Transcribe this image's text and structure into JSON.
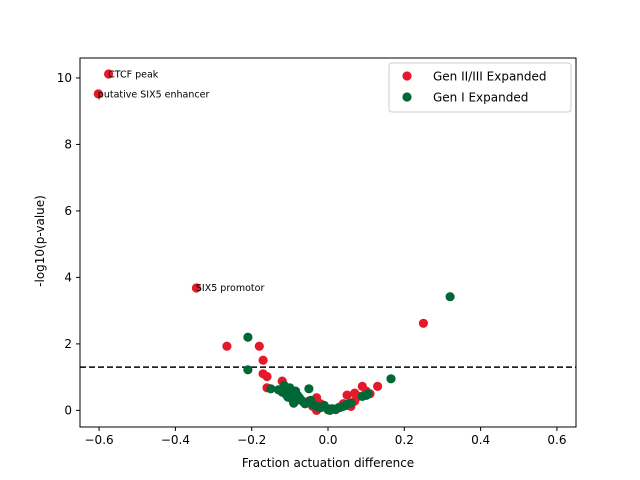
{
  "chart_data": {
    "type": "scatter",
    "xlabel": "Fraction actuation difference",
    "ylabel": "-log10(p-value)",
    "xlim": [
      -0.65,
      0.65
    ],
    "ylim": [
      -0.5,
      10.6
    ],
    "xticks": [
      -0.6,
      -0.4,
      -0.2,
      0.0,
      0.2,
      0.4,
      0.6
    ],
    "xtick_labels": [
      "−0.6",
      "−0.4",
      "−0.2",
      "0.0",
      "0.2",
      "0.4",
      "0.6"
    ],
    "yticks": [
      0,
      2,
      4,
      6,
      8,
      10
    ],
    "ytick_labels": [
      "0",
      "2",
      "4",
      "6",
      "8",
      "10"
    ],
    "grid": false,
    "legend_position": "top-right",
    "threshold": {
      "y": 1.3,
      "style": "dashed",
      "color": "#000000"
    },
    "annotations": [
      {
        "text": "CTCF peak",
        "x": -0.575,
        "y": 10.1
      },
      {
        "text": "putative SIX5 enhancer",
        "x": -0.602,
        "y": 9.5
      },
      {
        "text": "SIX5 promotor",
        "x": -0.345,
        "y": 3.68
      }
    ],
    "series": [
      {
        "name": "Gen II/III Expanded",
        "color": "#e41a2b",
        "points": [
          [
            -0.575,
            10.12
          ],
          [
            -0.602,
            9.52
          ],
          [
            -0.345,
            3.68
          ],
          [
            0.25,
            2.62
          ],
          [
            -0.265,
            1.93
          ],
          [
            -0.18,
            1.93
          ],
          [
            -0.17,
            1.51
          ],
          [
            -0.17,
            1.1
          ],
          [
            -0.16,
            1.02
          ],
          [
            -0.16,
            0.68
          ],
          [
            -0.12,
            0.88
          ],
          [
            -0.11,
            0.6
          ],
          [
            -0.09,
            0.42
          ],
          [
            -0.08,
            0.32
          ],
          [
            -0.06,
            0.2
          ],
          [
            -0.05,
            0.28
          ],
          [
            -0.04,
            0.12
          ],
          [
            -0.03,
            0.0
          ],
          [
            -0.03,
            0.38
          ],
          [
            -0.02,
            0.2
          ],
          [
            0.0,
            0.05
          ],
          [
            0.02,
            0.02
          ],
          [
            0.03,
            0.1
          ],
          [
            0.04,
            0.2
          ],
          [
            0.05,
            0.46
          ],
          [
            0.05,
            0.15
          ],
          [
            0.06,
            0.12
          ],
          [
            0.07,
            0.52
          ],
          [
            0.07,
            0.28
          ],
          [
            0.08,
            0.42
          ],
          [
            0.09,
            0.72
          ],
          [
            0.1,
            0.58
          ],
          [
            0.11,
            0.5
          ],
          [
            0.13,
            0.72
          ]
        ]
      },
      {
        "name": "Gen I Expanded",
        "color": "#006837",
        "points": [
          [
            0.32,
            3.42
          ],
          [
            -0.21,
            2.2
          ],
          [
            -0.21,
            1.22
          ],
          [
            -0.15,
            0.65
          ],
          [
            -0.13,
            0.62
          ],
          [
            -0.12,
            0.55
          ],
          [
            -0.115,
            0.75
          ],
          [
            -0.11,
            0.48
          ],
          [
            -0.105,
            0.4
          ],
          [
            -0.1,
            0.68
          ],
          [
            -0.095,
            0.35
          ],
          [
            -0.09,
            0.5
          ],
          [
            -0.09,
            0.22
          ],
          [
            -0.085,
            0.58
          ],
          [
            -0.08,
            0.45
          ],
          [
            -0.075,
            0.38
          ],
          [
            -0.07,
            0.3
          ],
          [
            -0.065,
            0.26
          ],
          [
            -0.06,
            0.2
          ],
          [
            -0.05,
            0.65
          ],
          [
            -0.045,
            0.3
          ],
          [
            -0.04,
            0.18
          ],
          [
            -0.03,
            0.12
          ],
          [
            -0.02,
            0.08
          ],
          [
            -0.01,
            0.15
          ],
          [
            0.0,
            0.02
          ],
          [
            0.005,
            0.0
          ],
          [
            0.01,
            0.05
          ],
          [
            0.02,
            0.04
          ],
          [
            0.03,
            0.08
          ],
          [
            0.04,
            0.12
          ],
          [
            0.05,
            0.18
          ],
          [
            0.06,
            0.22
          ],
          [
            0.09,
            0.42
          ],
          [
            0.1,
            0.45
          ],
          [
            0.105,
            0.5
          ],
          [
            0.165,
            0.95
          ]
        ]
      }
    ]
  }
}
